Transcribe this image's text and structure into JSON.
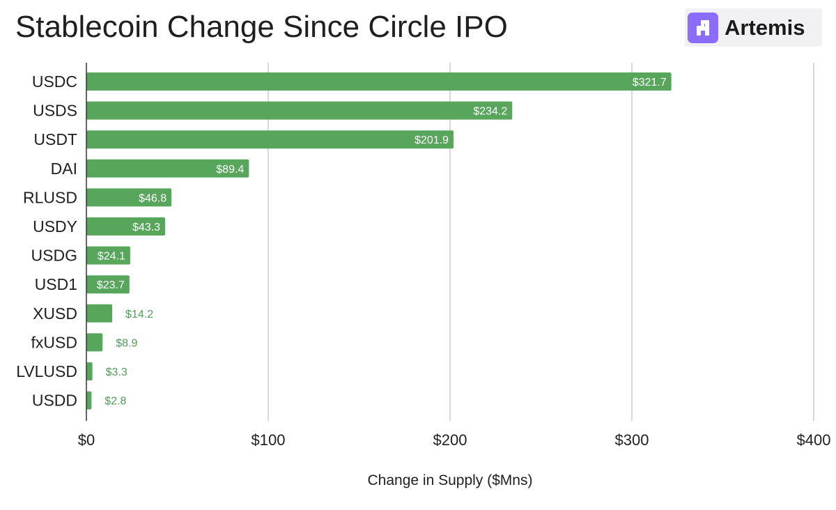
{
  "title": "Stablecoin Change Since Circle IPO",
  "logo": {
    "text": "Artemis",
    "icon": "artemis-logo-icon",
    "color": "#7b61ff"
  },
  "colors": {
    "bar": "#57a65c",
    "grid": "#cccccc",
    "axis": "#333333",
    "outside_label": "#4f9e56"
  },
  "chart_data": {
    "type": "bar",
    "orientation": "horizontal",
    "categories": [
      "USDC",
      "USDS",
      "USDT",
      "DAI",
      "RLUSD",
      "USDY",
      "USDG",
      "USD1",
      "XUSD",
      "fxUSD",
      "LVLUSD",
      "USDD"
    ],
    "values": [
      321.7,
      234.2,
      201.9,
      89.4,
      46.8,
      43.3,
      24.1,
      23.7,
      14.2,
      8.9,
      3.3,
      2.8
    ],
    "data_labels": [
      "$321.7",
      "$234.2",
      "$201.9",
      "$89.4",
      "$46.8",
      "$43.3",
      "$24.1",
      "$23.7",
      "$14.2",
      "$8.9",
      "$3.3",
      "$2.8"
    ],
    "xlabel": "Change in Supply ($Mns)",
    "ylabel": "",
    "xlim": [
      0,
      400
    ],
    "xticks": [
      0,
      100,
      200,
      300,
      400
    ],
    "xtick_labels": [
      "$0",
      "$100",
      "$200",
      "$300",
      "$400"
    ],
    "grid": true,
    "legend": "none"
  }
}
